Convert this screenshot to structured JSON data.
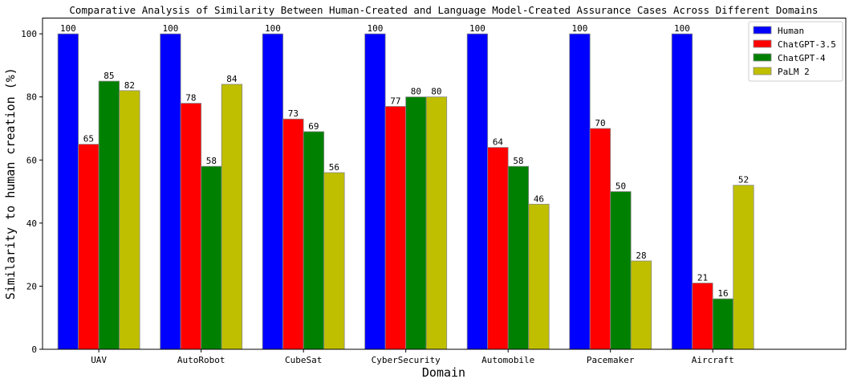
{
  "chart_data": {
    "type": "bar",
    "title": "Comparative Analysis of Similarity Between Human-Created and Language Model-Created Assurance Cases Across Different Domains",
    "xlabel": "Domain",
    "ylabel": "Similarity to human creation (%)",
    "ylim": [
      0,
      105
    ],
    "yticks": [
      0,
      20,
      40,
      60,
      80,
      100
    ],
    "categories": [
      "UAV",
      "AutoRobot",
      "CubeSat",
      "CyberSecurity",
      "Automobile",
      "Pacemaker",
      "Aircraft"
    ],
    "series": [
      {
        "name": "Human",
        "color": "#0000ff",
        "values": [
          100,
          100,
          100,
          100,
          100,
          100,
          100
        ]
      },
      {
        "name": "ChatGPT-3.5",
        "color": "#ff0000",
        "values": [
          65,
          78,
          73,
          77,
          64,
          70,
          21
        ]
      },
      {
        "name": "ChatGPT-4",
        "color": "#008000",
        "values": [
          85,
          58,
          69,
          80,
          58,
          50,
          16
        ]
      },
      {
        "name": "PaLM 2",
        "color": "#bfbf00",
        "values": [
          82,
          84,
          56,
          80,
          46,
          28,
          52
        ]
      }
    ],
    "legend_position": "top-right",
    "grid": false,
    "data_labels": true
  }
}
